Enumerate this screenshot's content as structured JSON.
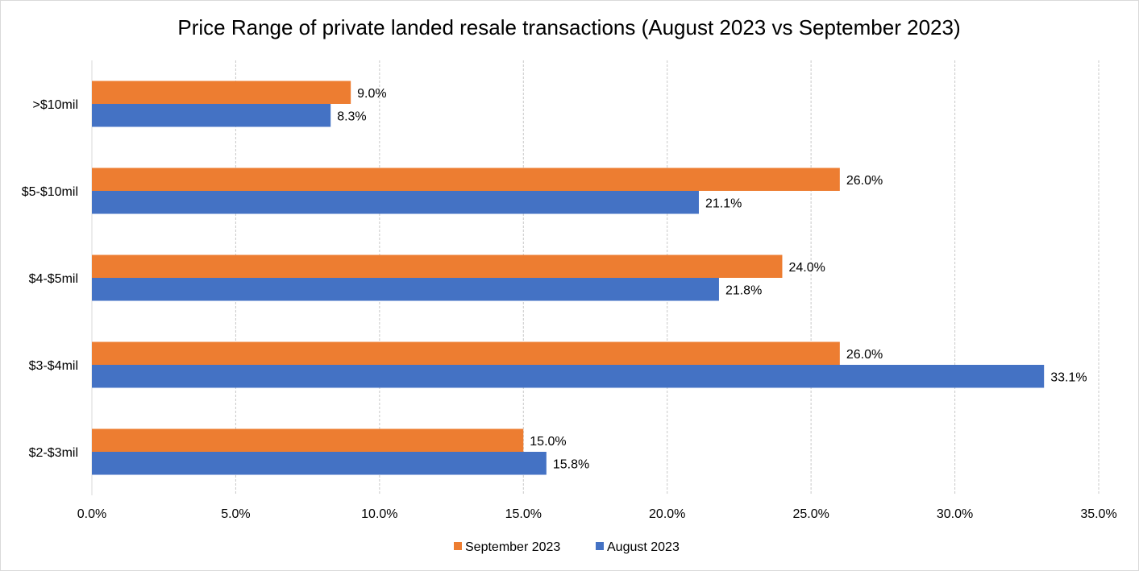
{
  "chart_data": {
    "type": "bar",
    "orientation": "horizontal",
    "title": "Price Range of private landed resale transactions (August 2023 vs September 2023)",
    "xlabel": "",
    "ylabel": "",
    "categories": [
      ">$10mil",
      "$5-$10mil",
      "$4-$5mil",
      "$3-$4mil",
      "$2-$3mil"
    ],
    "series": [
      {
        "name": "September 2023",
        "color": "#ED7D31",
        "values": [
          9.0,
          26.0,
          24.0,
          26.0,
          15.0
        ],
        "labels": [
          "9.0%",
          "26.0%",
          "24.0%",
          "26.0%",
          "15.0%"
        ]
      },
      {
        "name": "August 2023",
        "color": "#4472C4",
        "values": [
          8.3,
          21.1,
          21.8,
          33.1,
          15.8
        ],
        "labels": [
          "8.3%",
          "21.1%",
          "21.8%",
          "33.1%",
          "15.8%"
        ]
      }
    ],
    "xlim": [
      0,
      35
    ],
    "xticks": [
      "0.0%",
      "5.0%",
      "10.0%",
      "15.0%",
      "20.0%",
      "25.0%",
      "30.0%",
      "35.0%"
    ],
    "grid": true,
    "legend_position": "bottom"
  }
}
